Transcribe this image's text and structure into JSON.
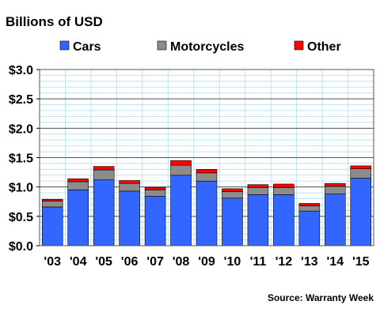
{
  "chart_data": {
    "type": "bar",
    "stacked": true,
    "title": "Billions of USD",
    "source": "Source: Warranty Week",
    "categories": [
      "'03",
      "'04",
      "'05",
      "'06",
      "'07",
      "'08",
      "'09",
      "'10",
      "'11",
      "'12",
      "'13",
      "'14",
      "'15"
    ],
    "series": [
      {
        "name": "Cars",
        "color": "#3366ff",
        "values": [
          0.66,
          0.95,
          1.12,
          0.93,
          0.84,
          1.2,
          1.1,
          0.81,
          0.87,
          0.87,
          0.59,
          0.88,
          1.15
        ]
      },
      {
        "name": "Motorcycles",
        "color": "#8c8c8c",
        "values": [
          0.1,
          0.14,
          0.17,
          0.13,
          0.11,
          0.17,
          0.14,
          0.11,
          0.12,
          0.12,
          0.09,
          0.13,
          0.16
        ]
      },
      {
        "name": "Other",
        "color": "#ff0000",
        "values": [
          0.03,
          0.05,
          0.06,
          0.05,
          0.04,
          0.08,
          0.06,
          0.05,
          0.05,
          0.06,
          0.04,
          0.05,
          0.05
        ]
      }
    ],
    "ylim": [
      0,
      3.0
    ],
    "yticks": [
      0.0,
      0.5,
      1.0,
      1.5,
      2.0,
      2.5,
      3.0
    ],
    "ytick_labels": [
      "$0.0",
      "$0.5",
      "$1.0",
      "$1.5",
      "$2.0",
      "$2.5",
      "$3.0"
    ],
    "grid": true,
    "legend": "top"
  }
}
